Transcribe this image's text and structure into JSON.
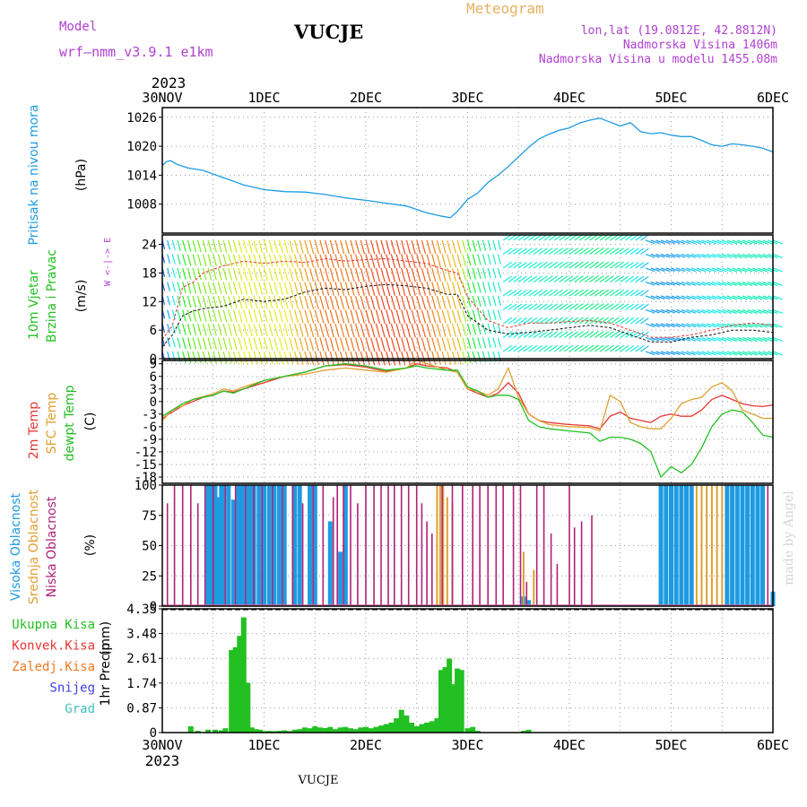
{
  "header": {
    "model_label": "Model",
    "model_name": "wrf—nmm_v3.9.1  e1km",
    "station": "VUCJE",
    "product": "Meteogram",
    "location": "lon,lat (19.0812E, 42.8812N)",
    "elevation": "Nadmorska Visina 1406m",
    "model_elevation": "Nadmorska Visina u modelu 1455.08m",
    "footer_station": "VUCJE",
    "watermark": "made by Angel"
  },
  "colors": {
    "pressure": "#1e9be0",
    "temp2m": "#e83535",
    "sfc_temp": "#e0a030",
    "dewpoint": "#22c022",
    "high_cloud": "#1e9be0",
    "mid_cloud": "#e0a030",
    "low_cloud": "#b0207a",
    "precip_total": "#22c022",
    "precip_conv": "#e83535",
    "precip_frozen": "#f07820",
    "snow": "#4040e0",
    "graupel": "#40c0c0",
    "model_text": "#b040d0",
    "meteogram_text": "#e8b060"
  },
  "chart_data": [
    {
      "type": "line",
      "id": "pressure",
      "ylabel_title": "Pritisak na nivou mora",
      "ylabel_unit": "(hPa)",
      "ylim": [
        1002,
        1028
      ],
      "yticks": [
        "1026",
        "1020",
        "1014",
        "1008"
      ],
      "ytick_values": [
        1026,
        1020,
        1014,
        1008
      ],
      "x_days": [
        0,
        0.04,
        0.08,
        0.15,
        0.25,
        0.4,
        0.6,
        0.8,
        1.0,
        1.2,
        1.4,
        1.6,
        1.8,
        2.0,
        2.2,
        2.4,
        2.6,
        2.75,
        2.83,
        2.9,
        3.0,
        3.1,
        3.2,
        3.3,
        3.4,
        3.5,
        3.6,
        3.7,
        3.8,
        3.9,
        4.0,
        4.1,
        4.2,
        4.3,
        4.4,
        4.5,
        4.6,
        4.7,
        4.8,
        4.9,
        5.0,
        5.1,
        5.2,
        5.3,
        5.4,
        5.5,
        5.6,
        5.7,
        5.8,
        5.9,
        6.0
      ],
      "series": [
        {
          "key": "pressure",
          "values": [
            1016,
            1016.8,
            1017.0,
            1016.2,
            1015.5,
            1015.0,
            1013.5,
            1012.0,
            1011.0,
            1010.6,
            1010.5,
            1010.0,
            1009.3,
            1008.8,
            1008.2,
            1007.6,
            1006.2,
            1005.5,
            1005.2,
            1006.5,
            1009.0,
            1010.3,
            1012.5,
            1014.0,
            1015.8,
            1017.8,
            1019.8,
            1021.5,
            1022.5,
            1023.3,
            1023.8,
            1024.8,
            1025.4,
            1025.8,
            1025.0,
            1024.2,
            1024.9,
            1023.0,
            1022.6,
            1022.8,
            1022.3,
            1022.0,
            1022.0,
            1021.2,
            1020.3,
            1020.0,
            1020.5,
            1020.3,
            1020.0,
            1019.6,
            1018.8
          ]
        }
      ]
    },
    {
      "type": "line",
      "id": "wind",
      "ylabel_title": "10m Vjetar",
      "ylabel_title2": "Brzina i Pravac",
      "ylabel_unit": "(m/s)",
      "compass": "W  <-|->  E",
      "ylim": [
        0,
        26
      ],
      "yticks": [
        "24",
        "18",
        "12",
        "6",
        "0"
      ],
      "ytick_values": [
        24,
        18,
        12,
        6,
        0
      ],
      "x_days": [
        0,
        0.1,
        0.2,
        0.3,
        0.4,
        0.6,
        0.8,
        1.0,
        1.2,
        1.4,
        1.6,
        1.8,
        2.0,
        2.2,
        2.4,
        2.6,
        2.8,
        2.9,
        3.0,
        3.2,
        3.4,
        3.6,
        3.8,
        4.0,
        4.2,
        4.4,
        4.6,
        4.8,
        5.0,
        5.2,
        5.4,
        5.6,
        5.8,
        6.0
      ],
      "series": [
        {
          "key": "speed",
          "values": [
            2.5,
            5,
            9,
            10,
            10.5,
            11,
            12.5,
            12,
            12.5,
            14,
            14.8,
            14.5,
            15.2,
            15.6,
            15.3,
            14.8,
            13.5,
            13.5,
            9,
            6,
            5.2,
            5.5,
            6,
            6.5,
            7,
            6.5,
            5,
            3.5,
            3.5,
            4.5,
            5,
            6,
            6,
            5.5
          ]
        },
        {
          "key": "gust",
          "values": [
            4,
            7,
            15,
            16,
            18,
            19.5,
            20.5,
            20,
            20.5,
            20.2,
            21,
            20.5,
            20.8,
            21,
            20.5,
            20,
            18.5,
            18,
            13,
            8,
            6.5,
            7.5,
            7.5,
            7.8,
            8,
            7.5,
            6,
            4.5,
            4.5,
            5,
            6,
            7,
            7.5,
            7
          ]
        }
      ]
    },
    {
      "type": "line",
      "id": "temperature",
      "ylabel_title": "2m Temp",
      "ylabel_title2": "SFC Temp",
      "ylabel_title3": "dewpt Temp",
      "ylabel_unit": "(C)",
      "ylim": [
        -19.5,
        9.8
      ],
      "yticks": [
        "9",
        "6",
        "3",
        "0",
        "-3",
        "-6",
        "-9",
        "-12",
        "-15",
        "-18"
      ],
      "ytick_values": [
        9,
        6,
        3,
        0,
        -3,
        -6,
        -9,
        -12,
        -15,
        -18
      ],
      "x_days": [
        0,
        0.1,
        0.2,
        0.3,
        0.4,
        0.5,
        0.6,
        0.7,
        0.8,
        1.0,
        1.2,
        1.4,
        1.6,
        1.8,
        2.0,
        2.2,
        2.4,
        2.5,
        2.6,
        2.8,
        2.9,
        3.0,
        3.1,
        3.2,
        3.3,
        3.4,
        3.5,
        3.6,
        3.7,
        3.8,
        4.0,
        4.2,
        4.3,
        4.4,
        4.5,
        4.6,
        4.7,
        4.8,
        4.9,
        5.0,
        5.1,
        5.2,
        5.3,
        5.4,
        5.5,
        5.6,
        5.7,
        5.8,
        5.9,
        6.0
      ],
      "series": [
        {
          "key": "temp2m",
          "values": [
            -4,
            -2.5,
            -1,
            0,
            1,
            1.5,
            2.5,
            2.2,
            3,
            4.5,
            6,
            7,
            8.5,
            8.8,
            8.2,
            7.2,
            8,
            9,
            8.5,
            8,
            7,
            3,
            2,
            1,
            2,
            4.5,
            2,
            -3,
            -4.5,
            -5,
            -5.5,
            -5.8,
            -6.5,
            -3.5,
            -2.5,
            -4,
            -4.5,
            -5,
            -3.5,
            -3,
            -3.5,
            -3.5,
            -2,
            0.5,
            1.5,
            0.5,
            -0.5,
            -1,
            -1.2,
            -0.8
          ]
        },
        {
          "key": "sfc_temp",
          "values": [
            -4.5,
            -2,
            -1,
            0.5,
            1.2,
            1.8,
            3,
            2.5,
            3.5,
            5,
            6,
            6.5,
            7.5,
            8,
            7.5,
            7,
            8,
            10,
            9,
            7.5,
            7,
            3,
            2.5,
            1.5,
            3,
            8,
            1,
            -3,
            -4.5,
            -5.5,
            -6,
            -6.2,
            -7,
            1.5,
            0,
            -5,
            -6,
            -6.5,
            -6.5,
            -4,
            -0.5,
            0.5,
            1,
            3.5,
            4.5,
            2.5,
            -2,
            -3,
            -4,
            -4
          ]
        },
        {
          "key": "dewpoint",
          "values": [
            -3.5,
            -2,
            -0.5,
            0.5,
            1,
            1.5,
            2.5,
            2,
            3,
            5,
            6,
            7,
            8.5,
            9,
            8.5,
            7.5,
            8,
            8.5,
            8,
            7.5,
            7.5,
            3.5,
            2.5,
            1,
            1.5,
            1.5,
            0.5,
            -4.5,
            -6,
            -6.5,
            -7,
            -7.5,
            -9.5,
            -8.5,
            -8.5,
            -9,
            -10,
            -12,
            -18,
            -15.5,
            -17,
            -15,
            -11,
            -6,
            -3,
            -2,
            -2.5,
            -5,
            -8,
            -8.5
          ]
        }
      ]
    },
    {
      "type": "bar",
      "id": "clouds",
      "ylabel_title": "Visoka Oblacnost",
      "ylabel_title2": "Srednja Oblacnost",
      "ylabel_title3": "Niska Oblacnost",
      "ylabel_unit": "(%)",
      "ylim": [
        0,
        100
      ],
      "yticks": [
        "100",
        "75",
        "50",
        "25",
        "0"
      ],
      "ytick_values": [
        100,
        75,
        50,
        25,
        0
      ],
      "high_x": [
        0.45,
        0.48,
        0.52,
        0.55,
        0.58,
        0.6,
        0.65,
        0.7,
        0.75,
        0.78,
        0.8,
        0.85,
        0.88,
        0.9,
        0.95,
        1.0,
        1.05,
        1.1,
        1.15,
        1.2,
        1.3,
        1.35,
        1.45,
        1.5,
        1.65,
        1.75,
        1.8,
        3.55,
        3.6,
        4.9,
        4.95,
        5.0,
        5.05,
        5.1,
        5.15,
        5.2,
        5.55,
        5.6,
        5.65,
        5.7,
        5.75,
        5.8,
        5.85,
        5.9,
        6.0
      ],
      "high_values": [
        100,
        100,
        100,
        90,
        100,
        100,
        100,
        88,
        100,
        100,
        100,
        100,
        100,
        100,
        100,
        100,
        100,
        100,
        100,
        100,
        100,
        100,
        100,
        100,
        70,
        45,
        100,
        8,
        5,
        100,
        100,
        100,
        100,
        100,
        100,
        100,
        100,
        100,
        100,
        100,
        100,
        100,
        100,
        100,
        12
      ],
      "mid_x": [
        2.7,
        2.73,
        2.76,
        2.8,
        2.85,
        3.55,
        3.65,
        5.25,
        5.3,
        5.35,
        5.4,
        5.45,
        5.5
      ],
      "mid_values": [
        100,
        100,
        100,
        90,
        85,
        45,
        30,
        100,
        100,
        100,
        100,
        100,
        100
      ],
      "low_x": [
        0.05,
        0.12,
        0.2,
        0.28,
        0.35,
        0.42,
        0.5,
        0.62,
        0.72,
        0.82,
        0.9,
        0.98,
        1.08,
        1.18,
        1.28,
        1.38,
        1.48,
        1.58,
        1.68,
        1.72,
        1.78,
        1.85,
        1.92,
        2.0,
        2.08,
        2.15,
        2.22,
        2.28,
        2.35,
        2.42,
        2.5,
        2.55,
        2.6,
        2.65,
        2.75,
        2.85,
        2.95,
        3.05,
        3.12,
        3.2,
        3.28,
        3.35,
        3.45,
        3.52,
        3.58,
        3.68,
        3.75,
        3.82,
        3.88,
        4.0,
        4.05,
        4.12,
        4.22,
        5.95
      ],
      "low_values": [
        85,
        100,
        100,
        100,
        85,
        100,
        100,
        100,
        100,
        100,
        100,
        100,
        100,
        100,
        100,
        85,
        100,
        100,
        90,
        100,
        100,
        100,
        85,
        100,
        100,
        100,
        100,
        100,
        100,
        100,
        100,
        85,
        70,
        60,
        100,
        100,
        100,
        100,
        100,
        100,
        100,
        100,
        100,
        100,
        20,
        100,
        100,
        60,
        35,
        100,
        65,
        70,
        75,
        100
      ]
    },
    {
      "type": "bar",
      "id": "precip",
      "ylabel_title": "1hr Precip",
      "ylabel_unit": "(mm)",
      "ylim": [
        0,
        4.35
      ],
      "yticks": [
        "4.35",
        "3.48",
        "2.61",
        "1.74",
        "0.87",
        "0"
      ],
      "ytick_values": [
        4.35,
        3.48,
        2.61,
        1.74,
        0.87,
        0
      ],
      "legend": [
        "Ukupna  Kisa",
        "Konvek.Kisa",
        "Zaledj.Kisa",
        "Snijeg",
        "Grad"
      ],
      "legend_keys": [
        "precip_total",
        "precip_conv",
        "precip_frozen",
        "snow",
        "graupel"
      ],
      "x": [
        0.28,
        0.35,
        0.45,
        0.52,
        0.58,
        0.62,
        0.68,
        0.72,
        0.76,
        0.8,
        0.84,
        0.88,
        0.92,
        0.96,
        1.0,
        1.05,
        1.1,
        1.15,
        1.2,
        1.25,
        1.3,
        1.35,
        1.4,
        1.45,
        1.5,
        1.55,
        1.6,
        1.65,
        1.7,
        1.75,
        1.8,
        1.85,
        1.9,
        1.95,
        2.0,
        2.05,
        2.1,
        2.15,
        2.2,
        2.25,
        2.3,
        2.35,
        2.4,
        2.45,
        2.5,
        2.55,
        2.6,
        2.65,
        2.7,
        2.74,
        2.78,
        2.82,
        2.86,
        2.9,
        2.94,
        3.0,
        3.05,
        3.1,
        3.55,
        3.6
      ],
      "values": [
        0.22,
        0.06,
        0.1,
        0.1,
        0.08,
        0.15,
        2.9,
        3.0,
        3.4,
        4.05,
        1.75,
        0.18,
        0.12,
        0.1,
        0.05,
        0.06,
        0.05,
        0.06,
        0.08,
        0.05,
        0.1,
        0.12,
        0.18,
        0.15,
        0.22,
        0.18,
        0.16,
        0.2,
        0.12,
        0.18,
        0.2,
        0.15,
        0.12,
        0.18,
        0.2,
        0.15,
        0.2,
        0.25,
        0.3,
        0.35,
        0.5,
        0.8,
        0.6,
        0.35,
        0.22,
        0.3,
        0.35,
        0.4,
        0.5,
        2.2,
        2.3,
        2.6,
        1.7,
        2.25,
        2.2,
        0.15,
        0.2,
        0.06,
        0.06,
        0.1
      ]
    }
  ],
  "xaxis": {
    "start_label": "30NOV",
    "year": "2023",
    "ticks": [
      "30NOV",
      "1DEC",
      "2DEC",
      "3DEC",
      "4DEC",
      "5DEC",
      "6DEC"
    ],
    "days": 6
  }
}
